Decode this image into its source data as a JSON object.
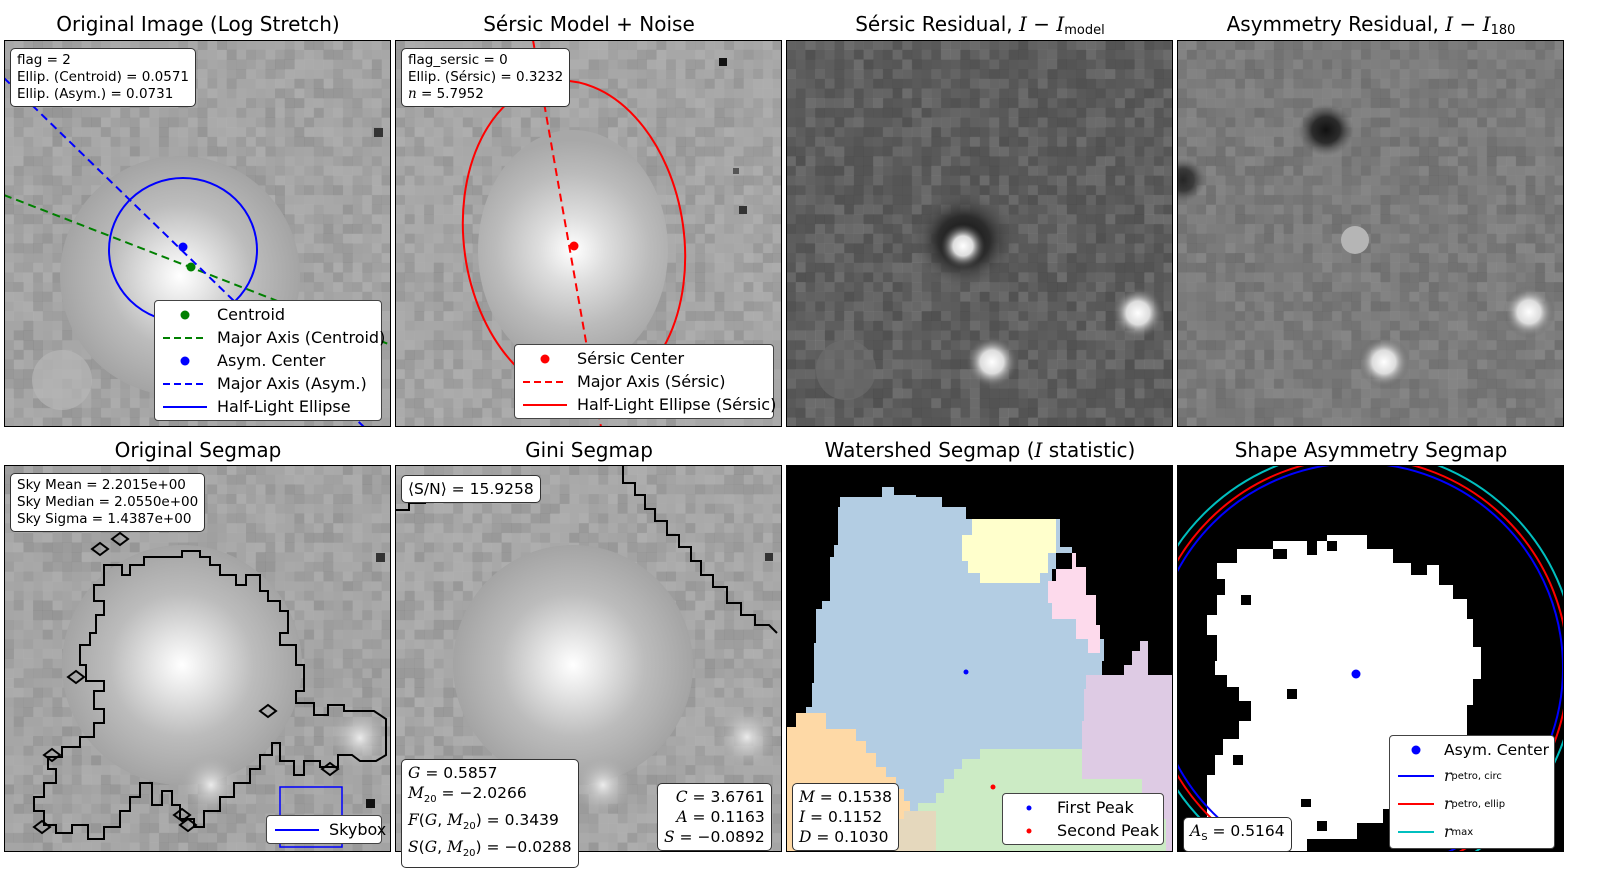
{
  "titles": {
    "p1": "Original Image (Log Stretch)",
    "p2": "Sérsic Model + Noise",
    "p3": "Sérsic Residual, I − I_model",
    "p4": "Asymmetry Residual, I − I_180",
    "p5": "Original Segmap",
    "p6": "Gini Segmap",
    "p7": "Watershed Segmap (I statistic)",
    "p8": "Shape Asymmetry Segmap"
  },
  "title_parts": {
    "p3_prefix": "Sérsic Residual, ",
    "p4_prefix": "Asymmetry Residual, ",
    "p7_prefix": "Watershed Segmap (",
    "p7_suffix": " statistic)"
  },
  "p1": {
    "info": [
      "flag = 2",
      "Ellip. (Centroid) = 0.0571",
      "Ellip. (Asym.) = 0.0731"
    ],
    "legend": [
      "Centroid",
      "Major Axis (Centroid)",
      "Asym. Center",
      "Major Axis (Asym.)",
      "Half-Light Ellipse"
    ]
  },
  "p2": {
    "info_flag": "flag_sersic = 0",
    "info_ellip": "Ellip. (Sérsic) = 0.3232",
    "info_n_label": "n",
    "info_n_value": " = 5.7952",
    "legend": [
      "Sérsic Center",
      "Major Axis (Sérsic)",
      "Half-Light Ellipse (Sérsic)"
    ]
  },
  "p5": {
    "info": [
      "Sky Mean = 2.2015e+00",
      "Sky Median = 2.0550e+00",
      "Sky Sigma = 1.4387e+00"
    ],
    "legend": [
      "Skybox"
    ]
  },
  "p6": {
    "sn": "⟨S/N⟩ = 15.9258",
    "gini": {
      "G": "0.5857",
      "M20": "−2.0266",
      "F": "0.3439",
      "S": "−0.0288"
    },
    "cas": {
      "C": "3.6761",
      "A": "0.1163",
      "S": "−0.0892"
    }
  },
  "p7": {
    "stats": {
      "M": "0.1538",
      "I": "0.1152",
      "D": "0.1030"
    },
    "legend": [
      "First Peak",
      "Second Peak"
    ]
  },
  "p8": {
    "as": "0.5164",
    "legend": [
      "Asym. Center",
      "petro, circ",
      "petro, ellip",
      "max"
    ]
  },
  "colors": {
    "centroid": "#008000",
    "asym": "#0000ff",
    "sersic": "#ff0000",
    "petro_circ": "#0000ff",
    "petro_ellip": "#ff0000",
    "rmax": "#00bfbf",
    "ws_blue": "#b3cde3",
    "ws_yellow": "#ffffcc",
    "ws_pink": "#fddaec",
    "ws_purple": "#decbe4",
    "ws_orange": "#fed9a6",
    "ws_green": "#ccebc5",
    "ws_tan": "#e5d8bd"
  }
}
